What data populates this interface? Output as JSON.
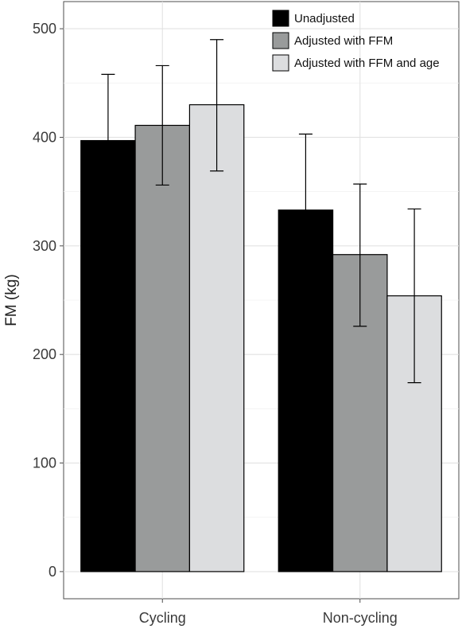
{
  "chart_data": {
    "type": "bar",
    "title": "",
    "xlabel": "",
    "ylabel": "FM (kg)",
    "categories": [
      "Cycling",
      "Non-cycling"
    ],
    "series": [
      {
        "name": "Unadjusted",
        "values": [
          397,
          333
        ],
        "error_low": [
          336,
          263
        ],
        "error_high": [
          458,
          403
        ],
        "color": "#000000"
      },
      {
        "name": "Adjusted with FFM",
        "values": [
          411,
          292
        ],
        "error_low": [
          356,
          226
        ],
        "error_high": [
          466,
          357
        ],
        "color": "#999b9b"
      },
      {
        "name": "Adjusted with FFM and age",
        "values": [
          430,
          254
        ],
        "error_low": [
          369,
          174
        ],
        "error_high": [
          490,
          334
        ],
        "color": "#dcdddf"
      }
    ],
    "yticks": [
      0,
      100,
      200,
      300,
      400,
      500
    ],
    "ytick_labels": [
      "0",
      "100",
      "200",
      "300",
      "400",
      "500"
    ],
    "ylim": [
      -25,
      525
    ],
    "grid": true,
    "legend_position": "top-right"
  }
}
